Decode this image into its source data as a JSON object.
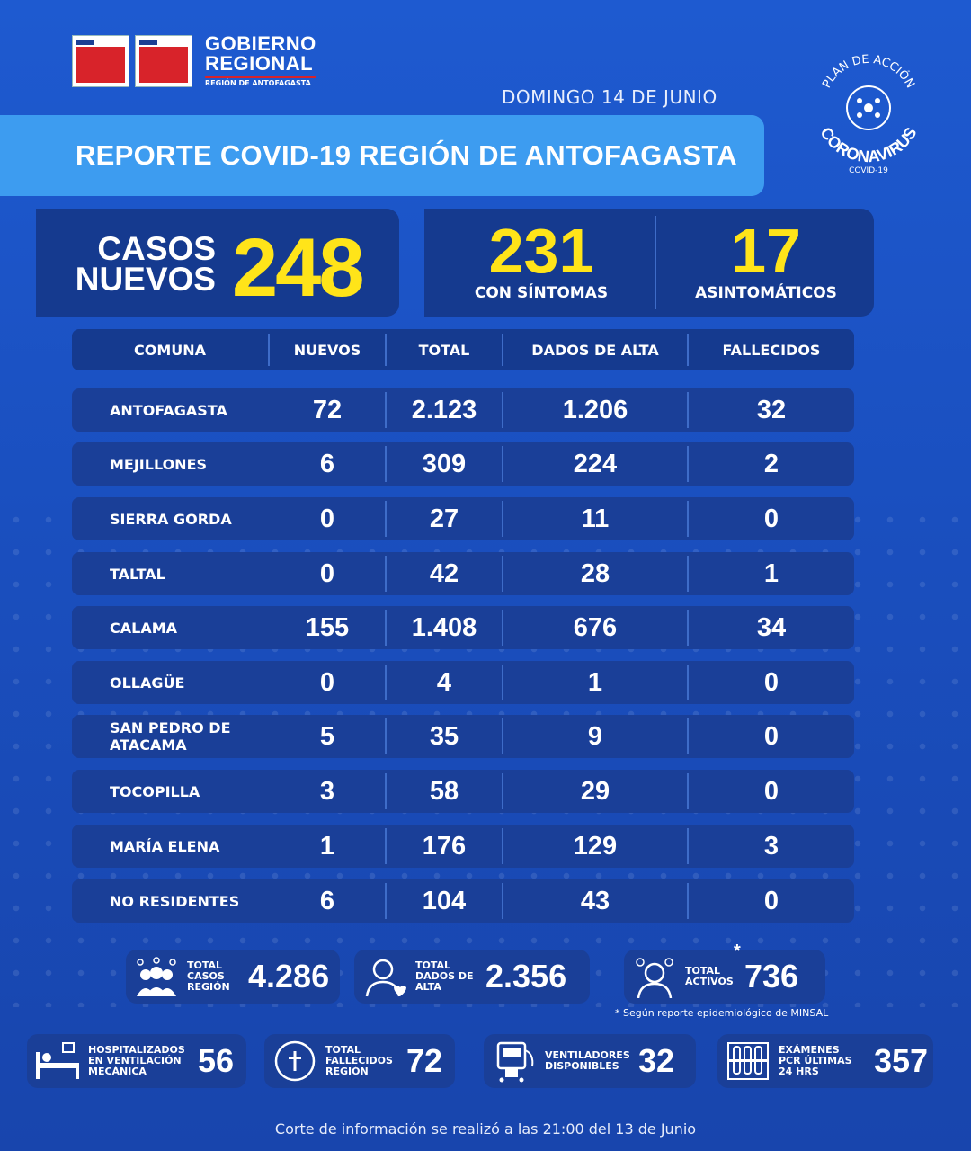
{
  "header": {
    "gob_line1": "GOBIERNO",
    "gob_line2": "REGIONAL",
    "gob_line3": "REGIÓN DE ANTOFAGASTA",
    "date": "DOMINGO 14 DE JUNIO",
    "title": "REPORTE COVID-19 REGIÓN DE ANTOFAGASTA",
    "covid_logo_top": "PLAN DE ACCIÓN",
    "covid_logo_main": "CORONAVIRUS",
    "covid_logo_sub": "COVID-19"
  },
  "summary": {
    "nuevos_label1": "CASOS",
    "nuevos_label2": "NUEVOS",
    "nuevos_value": "248",
    "sintomas_value": "231",
    "sintomas_label": "CON SÍNTOMAS",
    "asint_value": "17",
    "asint_label": "ASINTOMÁTICOS"
  },
  "table": {
    "headers": [
      "COMUNA",
      "NUEVOS",
      "TOTAL",
      "DADOS DE ALTA",
      "FALLECIDOS"
    ],
    "rows": [
      {
        "comuna": "ANTOFAGASTA",
        "nuevos": "72",
        "total": "2.123",
        "alta": "1.206",
        "fallecidos": "32"
      },
      {
        "comuna": "MEJILLONES",
        "nuevos": "6",
        "total": "309",
        "alta": "224",
        "fallecidos": "2"
      },
      {
        "comuna": "SIERRA GORDA",
        "nuevos": "0",
        "total": "27",
        "alta": "11",
        "fallecidos": "0"
      },
      {
        "comuna": "TALTAL",
        "nuevos": "0",
        "total": "42",
        "alta": "28",
        "fallecidos": "1"
      },
      {
        "comuna": "CALAMA",
        "nuevos": "155",
        "total": "1.408",
        "alta": "676",
        "fallecidos": "34"
      },
      {
        "comuna": "OLLAGÜE",
        "nuevos": "0",
        "total": "4",
        "alta": "1",
        "fallecidos": "0"
      },
      {
        "comuna": "SAN PEDRO DE ATACAMA",
        "nuevos": "5",
        "total": "35",
        "alta": "9",
        "fallecidos": "0"
      },
      {
        "comuna": "TOCOPILLA",
        "nuevos": "3",
        "total": "58",
        "alta": "29",
        "fallecidos": "0"
      },
      {
        "comuna": "MARÍA ELENA",
        "nuevos": "1",
        "total": "176",
        "alta": "129",
        "fallecidos": "3"
      },
      {
        "comuna": "NO RESIDENTES",
        "nuevos": "6",
        "total": "104",
        "alta": "43",
        "fallecidos": "0"
      }
    ]
  },
  "totals": {
    "casos_label": "TOTAL CASOS REGIÓN",
    "casos_value": "4.286",
    "alta_label": "TOTAL DADOS DE ALTA",
    "alta_value": "2.356",
    "activos_label": "TOTAL ACTIVOS",
    "activos_value": "736",
    "activos_mark": "*",
    "note": "Según reporte epidemiológico de MINSAL",
    "hosp_label": "HOSPITALIZADOS EN VENTILACIÓN MECÁNICA",
    "hosp_value": "56",
    "fall_label": "TOTAL FALLECIDOS REGIÓN",
    "fall_value": "72",
    "vent_label": "VENTILADORES DISPONIBLES",
    "vent_value": "32",
    "pcr_label": "EXÁMENES PCR ÚLTIMAS 24 HRS",
    "pcr_value": "357"
  },
  "footer": "Corte de información se realizó a las 21:00 del 13 de Junio",
  "colors": {
    "background": "#1a4fc0",
    "accent_yellow": "#ffe419",
    "title_bar": "#3d9cf0",
    "panel": "#153a8f"
  }
}
